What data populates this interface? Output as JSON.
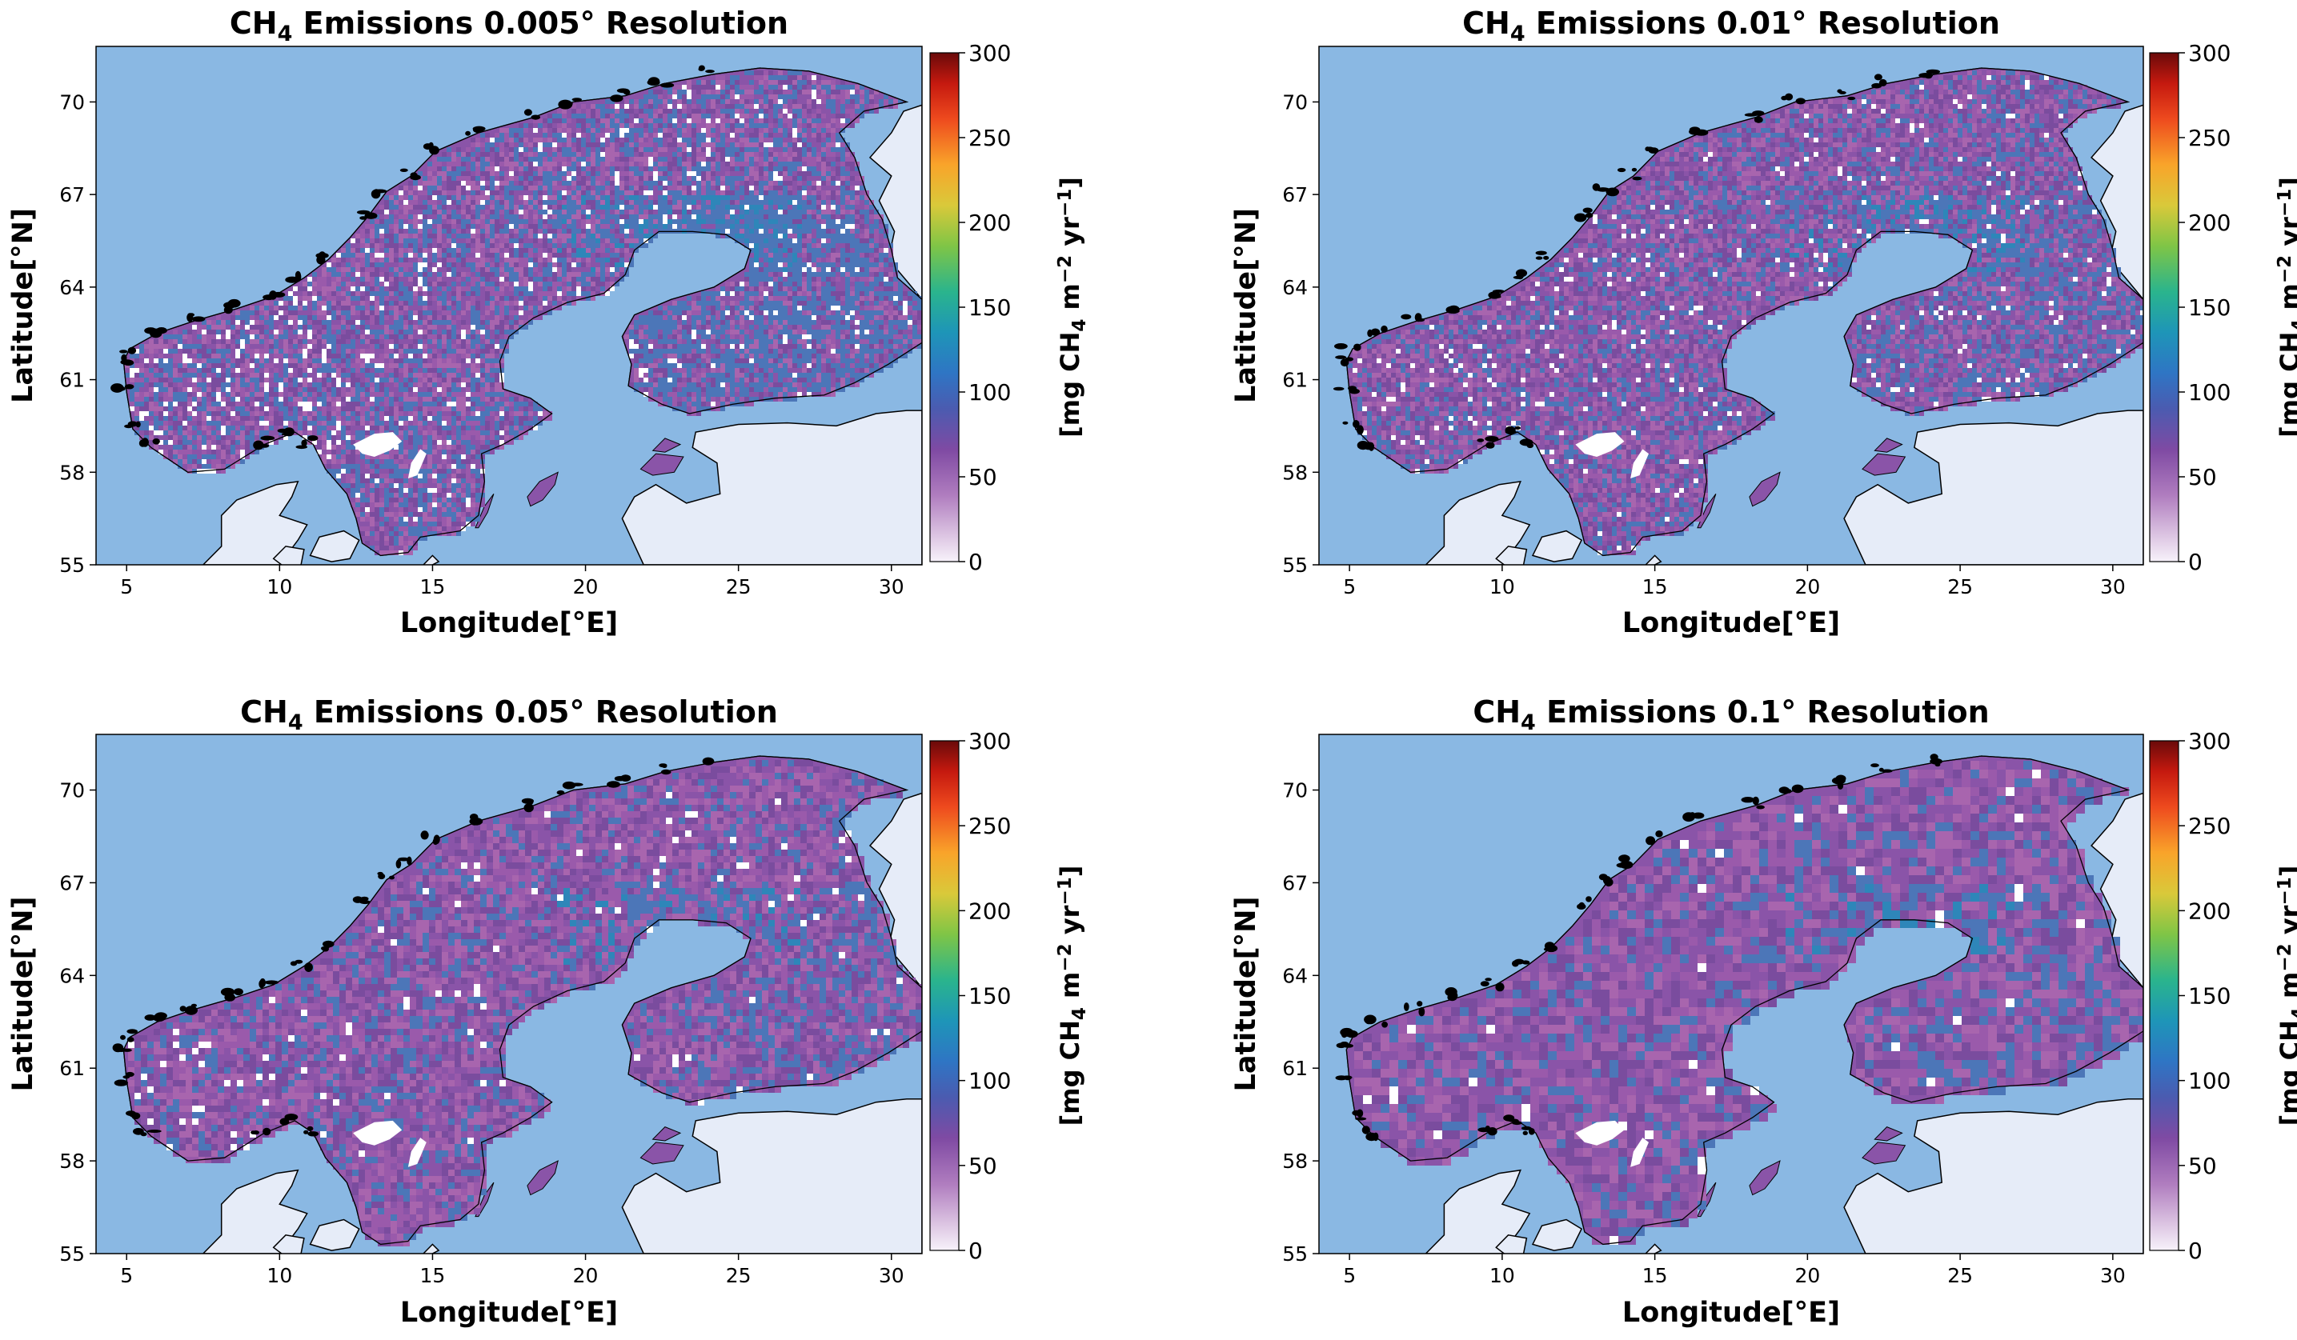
{
  "figure": {
    "panels": [
      {
        "id": "p005",
        "title_prefix": "CH",
        "title_sub": "4",
        "title_rest": " Emissions 0.005° Resolution",
        "xlabel": "Longitude[°E]",
        "ylabel": "Latitude[°N]",
        "lon_range": [
          4,
          31
        ],
        "lat_range": [
          55,
          71.8
        ],
        "xticks": [
          5,
          10,
          15,
          20,
          25,
          30
        ],
        "yticks": [
          55,
          58,
          61,
          64,
          67,
          70
        ],
        "blue_fraction": 0.38,
        "gap_density": 0.045,
        "speckle": "fine"
      },
      {
        "id": "p01",
        "title_prefix": "CH",
        "title_sub": "4",
        "title_rest": " Emissions 0.01° Resolution",
        "xlabel": "Longitude[°E]",
        "ylabel": "Latitude[°N]",
        "lon_range": [
          4,
          31
        ],
        "lat_range": [
          55,
          71.8
        ],
        "xticks": [
          5,
          10,
          15,
          20,
          25,
          30
        ],
        "yticks": [
          55,
          58,
          61,
          64,
          67,
          70
        ],
        "blue_fraction": 0.28,
        "gap_density": 0.03,
        "speckle": "fine"
      },
      {
        "id": "p05",
        "title_prefix": "CH",
        "title_sub": "4",
        "title_rest": " Emissions 0.05° Resolution",
        "xlabel": "Longitude[°E]",
        "ylabel": "Latitude[°N]",
        "lon_range": [
          4,
          31
        ],
        "lat_range": [
          55,
          71.8
        ],
        "xticks": [
          5,
          10,
          15,
          20,
          25,
          30
        ],
        "yticks": [
          55,
          58,
          61,
          64,
          67,
          70
        ],
        "blue_fraction": 0.22,
        "gap_density": 0.018,
        "speckle": "medium"
      },
      {
        "id": "p1",
        "title_prefix": "CH",
        "title_sub": "4",
        "title_rest": " Emissions 0.1° Resolution",
        "xlabel": "Longitude[°E]",
        "ylabel": "Latitude[°N]",
        "lon_range": [
          4,
          31
        ],
        "lat_range": [
          55,
          71.8
        ],
        "xticks": [
          5,
          10,
          15,
          20,
          25,
          30
        ],
        "yticks": [
          55,
          58,
          61,
          64,
          67,
          70
        ],
        "blue_fraction": 0.2,
        "gap_density": 0.012,
        "speckle": "coarse"
      }
    ],
    "colorbar": {
      "ticks": [
        0,
        50,
        100,
        150,
        200,
        250,
        300
      ],
      "range": [
        0,
        300
      ],
      "label_parts": [
        "[mg CH",
        "4",
        " m",
        "−2",
        " yr",
        "−1",
        "]"
      ],
      "colormap": "purple-blue-green-yellow-red"
    },
    "colors": {
      "sea": "#8ab8e3",
      "land_outside": "#e6ecf8",
      "emission_purple": "#8a54a8",
      "emission_pink": "#a865ae",
      "emission_blue": "#4c76b8",
      "coast": "#000000"
    },
    "colormap_stops": [
      [
        0,
        "#f7f2fa"
      ],
      [
        0.05,
        "#ddc6e3"
      ],
      [
        0.13,
        "#b07dbf"
      ],
      [
        0.22,
        "#7f4aa3"
      ],
      [
        0.3,
        "#4b5bb0"
      ],
      [
        0.37,
        "#2f75c4"
      ],
      [
        0.45,
        "#1e95b8"
      ],
      [
        0.53,
        "#2ab48d"
      ],
      [
        0.62,
        "#7fc546"
      ],
      [
        0.7,
        "#d9c93a"
      ],
      [
        0.78,
        "#f9a42a"
      ],
      [
        0.87,
        "#ee4a1e"
      ],
      [
        0.94,
        "#c5190f"
      ],
      [
        1,
        "#6a0a0a"
      ]
    ]
  }
}
